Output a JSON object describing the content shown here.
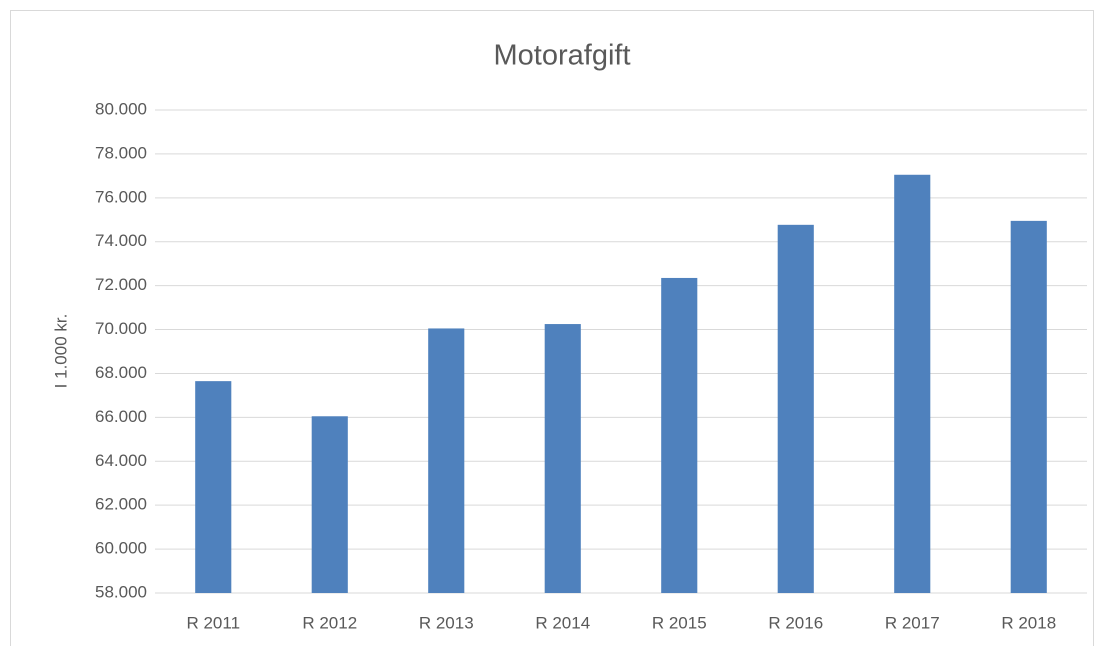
{
  "chart_data": {
    "type": "bar",
    "title": "Motorafgift",
    "y_label": "I 1.000 kr.",
    "categories": [
      "R 2011",
      "R 2012",
      "R 2013",
      "R 2014",
      "R 2015",
      "R 2016",
      "R 2017",
      "R 2018"
    ],
    "values": [
      67650,
      66050,
      70050,
      70250,
      72350,
      74770,
      77050,
      74950
    ],
    "color": "#4f81bd",
    "ylim": [
      58000,
      80000
    ],
    "yticks": [
      {
        "value": 58000,
        "label": "58.000"
      },
      {
        "value": 60000,
        "label": "60.000"
      },
      {
        "value": 62000,
        "label": "62.000"
      },
      {
        "value": 64000,
        "label": "64.000"
      },
      {
        "value": 66000,
        "label": "66.000"
      },
      {
        "value": 68000,
        "label": "68.000"
      },
      {
        "value": 70000,
        "label": "70.000"
      },
      {
        "value": 72000,
        "label": "72.000"
      },
      {
        "value": 74000,
        "label": "74.000"
      },
      {
        "value": 76000,
        "label": "76.000"
      },
      {
        "value": 78000,
        "label": "78.000"
      },
      {
        "value": 80000,
        "label": "80.000"
      }
    ],
    "grid": true
  }
}
